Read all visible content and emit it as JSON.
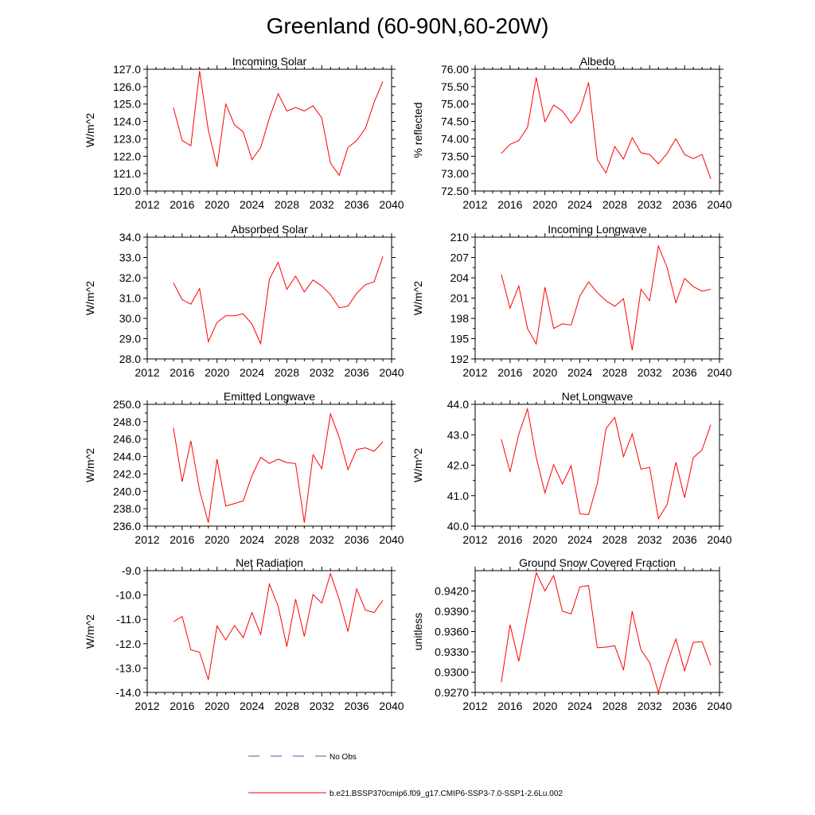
{
  "title": "Greenland (60-90N,60-20W)",
  "legend": {
    "placement": "bottom",
    "entries": [
      {
        "label": "No Obs",
        "color": "#4a5aa8",
        "dash": true
      },
      {
        "label": "b.e21.BSSP370cmip6.f09_g17.CMIP6-SSP3-7.0-SSP1-2.6Lu.002",
        "color": "#ff0000",
        "dash": false
      }
    ]
  },
  "chart_data": [
    {
      "type": "line",
      "title": "Incoming Solar",
      "ylabel": "W/m^2",
      "xlabel": "",
      "xlim": [
        2012,
        2040
      ],
      "ylim": [
        120,
        127
      ],
      "xticks": [
        2012,
        2016,
        2020,
        2024,
        2028,
        2032,
        2036,
        2040
      ],
      "yticks": [
        120,
        121,
        122,
        123,
        124,
        125,
        126,
        127
      ],
      "ydecimals": 1,
      "x": [
        2015,
        2016,
        2017,
        2018,
        2019,
        2020,
        2021,
        2022,
        2023,
        2024,
        2025,
        2026,
        2027,
        2028,
        2029,
        2030,
        2031,
        2032,
        2033,
        2034,
        2035,
        2036,
        2037,
        2038,
        2039
      ],
      "series": [
        {
          "color": "#ff0000",
          "values": [
            124.8,
            122.9,
            122.6,
            126.9,
            123.5,
            121.4,
            125.0,
            123.8,
            123.4,
            121.8,
            122.5,
            124.2,
            125.6,
            124.6,
            124.8,
            124.6,
            124.9,
            124.2,
            121.6,
            120.9,
            122.5,
            122.9,
            123.6,
            125.1,
            126.3
          ]
        }
      ]
    },
    {
      "type": "line",
      "title": "Albedo",
      "ylabel": "% reflected",
      "xlabel": "",
      "xlim": [
        2012,
        2040
      ],
      "ylim": [
        72.5,
        76.0
      ],
      "xticks": [
        2012,
        2016,
        2020,
        2024,
        2028,
        2032,
        2036,
        2040
      ],
      "yticks": [
        72.5,
        73.0,
        73.5,
        74.0,
        74.5,
        75.0,
        75.5,
        76.0
      ],
      "ydecimals": 2,
      "x": [
        2015,
        2016,
        2017,
        2018,
        2019,
        2020,
        2021,
        2022,
        2023,
        2024,
        2025,
        2026,
        2027,
        2028,
        2029,
        2030,
        2031,
        2032,
        2033,
        2034,
        2035,
        2036,
        2037,
        2038,
        2039
      ],
      "series": [
        {
          "color": "#ff0000",
          "values": [
            73.58,
            73.84,
            73.95,
            74.33,
            75.76,
            74.49,
            74.97,
            74.8,
            74.45,
            74.8,
            75.62,
            73.4,
            73.02,
            73.78,
            73.42,
            74.03,
            73.6,
            73.55,
            73.28,
            73.58,
            74.0,
            73.55,
            73.43,
            73.55,
            72.85
          ]
        }
      ]
    },
    {
      "type": "line",
      "title": "Absorbed Solar",
      "ylabel": "W/m^2",
      "xlabel": "",
      "xlim": [
        2012,
        2040
      ],
      "ylim": [
        28,
        34
      ],
      "xticks": [
        2012,
        2016,
        2020,
        2024,
        2028,
        2032,
        2036,
        2040
      ],
      "yticks": [
        28,
        29,
        30,
        31,
        32,
        33,
        34
      ],
      "ydecimals": 1,
      "x": [
        2015,
        2016,
        2017,
        2018,
        2019,
        2020,
        2021,
        2022,
        2023,
        2024,
        2025,
        2026,
        2027,
        2028,
        2029,
        2030,
        2031,
        2032,
        2033,
        2034,
        2035,
        2036,
        2037,
        2038,
        2039
      ],
      "series": [
        {
          "color": "#ff0000",
          "values": [
            31.75,
            30.92,
            30.7,
            31.47,
            28.85,
            29.8,
            30.13,
            30.13,
            30.22,
            29.72,
            28.75,
            31.93,
            32.76,
            31.43,
            32.08,
            31.3,
            31.89,
            31.6,
            31.17,
            30.52,
            30.6,
            31.23,
            31.66,
            31.8,
            33.05
          ]
        }
      ]
    },
    {
      "type": "line",
      "title": "Incoming Longwave",
      "ylabel": "W/m^2",
      "xlabel": "",
      "xlim": [
        2012,
        2040
      ],
      "ylim": [
        192,
        210
      ],
      "xticks": [
        2012,
        2016,
        2020,
        2024,
        2028,
        2032,
        2036,
        2040
      ],
      "yticks": [
        192,
        195,
        198,
        201,
        204,
        207,
        210
      ],
      "ydecimals": 0,
      "x": [
        2015,
        2016,
        2017,
        2018,
        2019,
        2020,
        2021,
        2022,
        2023,
        2024,
        2025,
        2026,
        2027,
        2028,
        2029,
        2030,
        2031,
        2032,
        2033,
        2034,
        2035,
        2036,
        2037,
        2038,
        2039
      ],
      "series": [
        {
          "color": "#ff0000",
          "values": [
            204.5,
            199.5,
            202.8,
            196.5,
            194.2,
            202.6,
            196.5,
            197.2,
            197.0,
            201.3,
            203.4,
            201.8,
            200.6,
            199.8,
            200.9,
            193.3,
            202.3,
            200.6,
            208.7,
            205.5,
            200.3,
            203.9,
            202.7,
            202.0,
            202.3
          ]
        }
      ]
    },
    {
      "type": "line",
      "title": "Emitted Longwave",
      "ylabel": "W/m^2",
      "xlabel": "",
      "xlim": [
        2012,
        2040
      ],
      "ylim": [
        236,
        250
      ],
      "xticks": [
        2012,
        2016,
        2020,
        2024,
        2028,
        2032,
        2036,
        2040
      ],
      "yticks": [
        236,
        238,
        240,
        242,
        244,
        246,
        248,
        250
      ],
      "ydecimals": 1,
      "x": [
        2015,
        2016,
        2017,
        2018,
        2019,
        2020,
        2021,
        2022,
        2023,
        2024,
        2025,
        2026,
        2027,
        2028,
        2029,
        2030,
        2031,
        2032,
        2033,
        2034,
        2035,
        2036,
        2037,
        2038,
        2039
      ],
      "series": [
        {
          "color": "#ff0000",
          "values": [
            247.3,
            241.1,
            245.8,
            240.1,
            236.4,
            243.7,
            238.3,
            238.6,
            238.9,
            241.8,
            243.9,
            243.2,
            243.7,
            243.3,
            243.2,
            236.4,
            244.2,
            242.6,
            248.9,
            246.2,
            242.5,
            244.8,
            245.0,
            244.6,
            245.7
          ]
        }
      ]
    },
    {
      "type": "line",
      "title": "Net Longwave",
      "ylabel": "W/m^2",
      "xlabel": "",
      "xlim": [
        2012,
        2040
      ],
      "ylim": [
        40,
        44
      ],
      "xticks": [
        2012,
        2016,
        2020,
        2024,
        2028,
        2032,
        2036,
        2040
      ],
      "yticks": [
        40,
        41,
        42,
        43,
        44
      ],
      "ydecimals": 1,
      "x": [
        2015,
        2016,
        2017,
        2018,
        2019,
        2020,
        2021,
        2022,
        2023,
        2024,
        2025,
        2026,
        2027,
        2028,
        2029,
        2030,
        2031,
        2032,
        2033,
        2034,
        2035,
        2036,
        2037,
        2038,
        2039
      ],
      "series": [
        {
          "color": "#ff0000",
          "values": [
            42.85,
            41.78,
            43.02,
            43.85,
            42.25,
            41.09,
            42.02,
            41.38,
            41.98,
            40.4,
            40.38,
            41.4,
            43.21,
            43.57,
            42.28,
            43.03,
            41.87,
            41.93,
            40.24,
            40.71,
            42.1,
            40.93,
            42.25,
            42.5,
            43.33
          ]
        }
      ]
    },
    {
      "type": "line",
      "title": "Net Radiation",
      "ylabel": "W/m^2",
      "xlabel": "",
      "xlim": [
        2012,
        2040
      ],
      "ylim": [
        -14,
        -9
      ],
      "xticks": [
        2012,
        2016,
        2020,
        2024,
        2028,
        2032,
        2036,
        2040
      ],
      "yticks": [
        -14,
        -13,
        -12,
        -11,
        -10,
        -9
      ],
      "ydecimals": 1,
      "x": [
        2015,
        2016,
        2017,
        2018,
        2019,
        2020,
        2021,
        2022,
        2023,
        2024,
        2025,
        2026,
        2027,
        2028,
        2029,
        2030,
        2031,
        2032,
        2033,
        2034,
        2035,
        2036,
        2037,
        2038,
        2039
      ],
      "series": [
        {
          "color": "#ff0000",
          "values": [
            -11.1,
            -10.88,
            -12.25,
            -12.35,
            -13.48,
            -11.27,
            -11.85,
            -11.25,
            -11.75,
            -10.72,
            -11.62,
            -9.55,
            -10.45,
            -12.12,
            -10.17,
            -11.7,
            -9.98,
            -10.33,
            -9.12,
            -10.18,
            -11.5,
            -9.75,
            -10.62,
            -10.72,
            -10.22
          ]
        }
      ]
    },
    {
      "type": "line",
      "title": "Ground Snow Covered Fraction",
      "ylabel": "unitless",
      "xlabel": "",
      "xlim": [
        2012,
        2040
      ],
      "ylim": [
        0.927,
        0.945
      ],
      "xticks": [
        2012,
        2016,
        2020,
        2024,
        2028,
        2032,
        2036,
        2040
      ],
      "yticks": [
        0.927,
        0.93,
        0.933,
        0.936,
        0.939,
        0.942
      ],
      "ydecimals": 4,
      "x": [
        2015,
        2016,
        2017,
        2018,
        2019,
        2020,
        2021,
        2022,
        2023,
        2024,
        2025,
        2026,
        2027,
        2028,
        2029,
        2030,
        2031,
        2032,
        2033,
        2034,
        2035,
        2036,
        2037,
        2038,
        2039
      ],
      "series": [
        {
          "color": "#ff0000",
          "values": [
            0.9285,
            0.937,
            0.9316,
            0.9383,
            0.9447,
            0.942,
            0.9443,
            0.939,
            0.9386,
            0.9426,
            0.9428,
            0.9336,
            0.9337,
            0.9339,
            0.9303,
            0.939,
            0.9333,
            0.9314,
            0.927,
            0.9313,
            0.9349,
            0.9302,
            0.9344,
            0.9345,
            0.931
          ]
        }
      ]
    }
  ]
}
